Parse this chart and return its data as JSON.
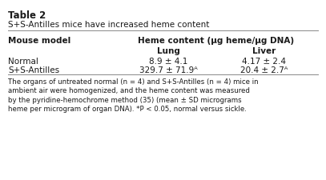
{
  "table_num": "Table 2",
  "title": "S+S-Antilles mice have increased heme content",
  "col_header1": "Mouse model",
  "col_header2": "Heme content (μg heme/μg DNA)",
  "sub_header_lung": "Lung",
  "sub_header_liver": "Liver",
  "rows": [
    {
      "model": "Normal",
      "lung": "8.9 ± 4.1",
      "liver": "4.17 ± 2.4"
    },
    {
      "model": "S+S-Antilles",
      "lung": "329.7 ± 71.9ᴬ",
      "liver": "20.4 ± 2.7ᴬ"
    }
  ],
  "footnote_parts": [
    {
      "text": "The organs of untreated normal (",
      "style": "normal"
    },
    {
      "text": "n",
      "style": "italic"
    },
    {
      "text": " = 4) and S+S-Antilles (",
      "style": "normal"
    },
    {
      "text": "n",
      "style": "italic"
    },
    {
      "text": " = 4) mice in\nambient air were homogenized, and the heme content was measured\nby the pyridine-hemochrome method (35) (mean ± SD micrograms\nheme per microgram of organ DNA). *",
      "style": "normal"
    },
    {
      "text": "P",
      "style": "italic"
    },
    {
      "text": " < 0.05, normal versus sickle.",
      "style": "normal"
    }
  ],
  "bg_color": "#ffffff",
  "text_color": "#1a1a1a",
  "line_color": "#888888"
}
